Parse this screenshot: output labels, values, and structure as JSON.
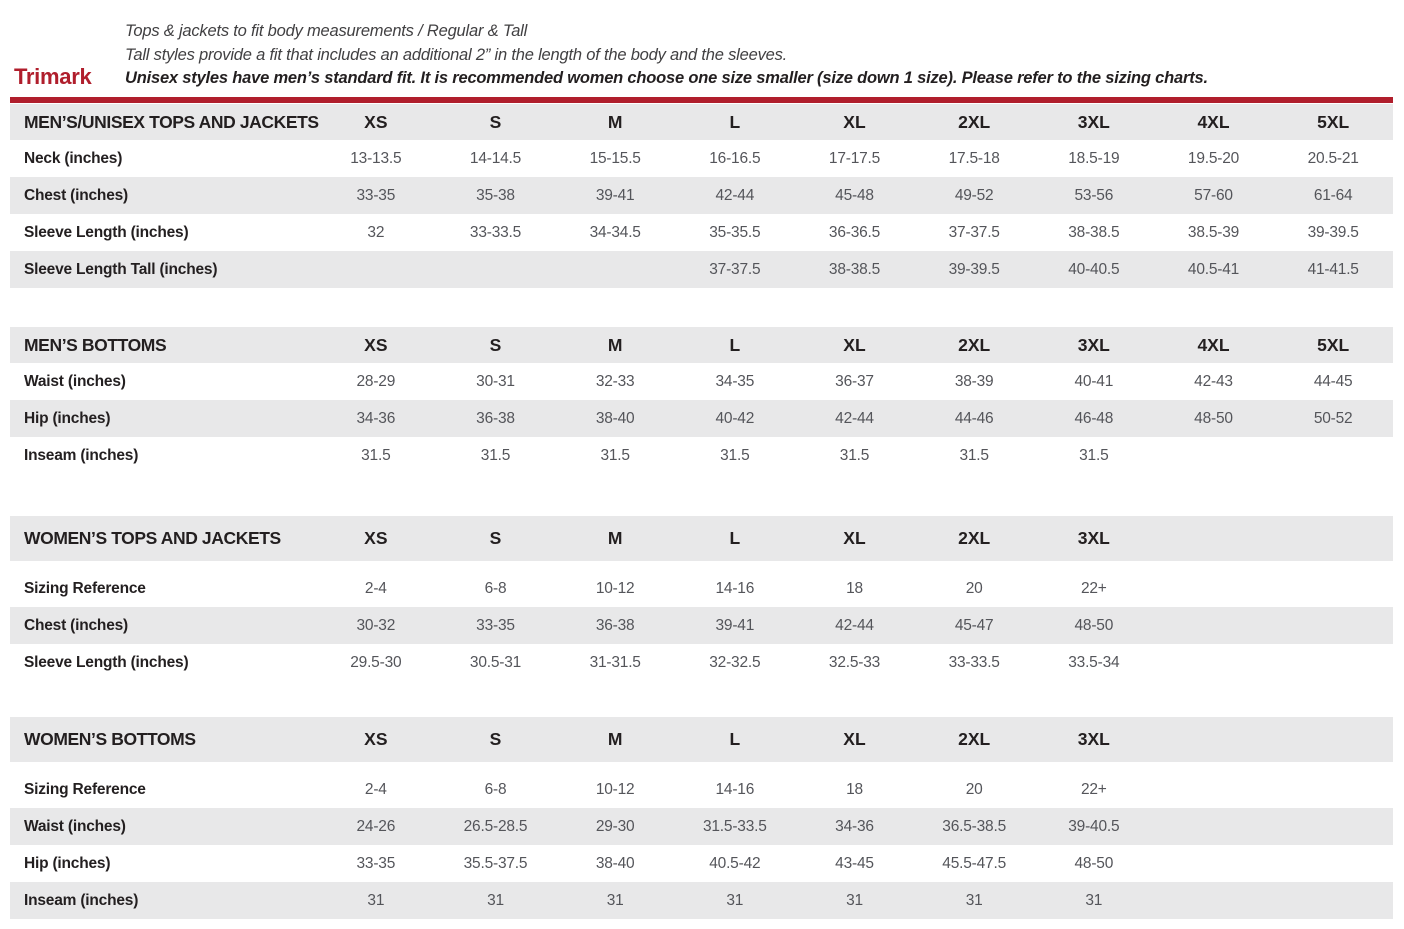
{
  "colors": {
    "accent_red": "#b01e2c",
    "row_shade_gray": "#e8e8e9",
    "label_text": "#231f20",
    "value_text": "#54555a"
  },
  "header": {
    "brand": "Trimark",
    "note_line_1": "Tops & jackets to fit body measurements / Regular & Tall",
    "note_line_2": "Tall styles provide a fit that includes an additional 2” in the length of the body and the sleeves.",
    "note_line_3": "Unisex styles have men’s standard fit. It is recommended women choose one size smaller (size down 1 size).  Please refer to the sizing charts."
  },
  "tables": [
    {
      "title": "MEN’S/UNISEX TOPS AND JACKETS",
      "sizes": [
        "XS",
        "S",
        "M",
        "L",
        "XL",
        "2XL",
        "3XL",
        "4XL",
        "5XL"
      ],
      "rows": [
        {
          "label": "Neck (inches)",
          "values": [
            "13-13.5",
            "14-14.5",
            "15-15.5",
            "16-16.5",
            "17-17.5",
            "17.5-18",
            "18.5-19",
            "19.5-20",
            "20.5-21"
          ]
        },
        {
          "label": "Chest (inches)",
          "values": [
            "33-35",
            "35-38",
            "39-41",
            "42-44",
            "45-48",
            "49-52",
            "53-56",
            "57-60",
            "61-64"
          ]
        },
        {
          "label": "Sleeve Length (inches)",
          "values": [
            "32",
            "33-33.5",
            "34-34.5",
            "35-35.5",
            "36-36.5",
            "37-37.5",
            "38-38.5",
            "38.5-39",
            "39-39.5"
          ]
        },
        {
          "label": "Sleeve Length Tall (inches)",
          "values": [
            "",
            "",
            "",
            "37-37.5",
            "38-38.5",
            "39-39.5",
            "40-40.5",
            "40.5-41",
            "41-41.5"
          ]
        }
      ]
    },
    {
      "title": "MEN’S BOTTOMS",
      "sizes": [
        "XS",
        "S",
        "M",
        "L",
        "XL",
        "2XL",
        "3XL",
        "4XL",
        "5XL"
      ],
      "rows": [
        {
          "label": "Waist (inches)",
          "values": [
            "28-29",
            "30-31",
            "32-33",
            "34-35",
            "36-37",
            "38-39",
            "40-41",
            "42-43",
            "44-45"
          ]
        },
        {
          "label": "Hip (inches)",
          "values": [
            "34-36",
            "36-38",
            "38-40",
            "40-42",
            "42-44",
            "44-46",
            "46-48",
            "48-50",
            "50-52"
          ]
        },
        {
          "label": "Inseam (inches)",
          "values": [
            "31.5",
            "31.5",
            "31.5",
            "31.5",
            "31.5",
            "31.5",
            "31.5",
            "",
            ""
          ]
        }
      ]
    },
    {
      "title": "WOMEN’S TOPS AND JACKETS",
      "sizes": [
        "XS",
        "S",
        "M",
        "L",
        "XL",
        "2XL",
        "3XL",
        "",
        ""
      ],
      "rows": [
        {
          "label": "Sizing Reference",
          "values": [
            "2-4",
            "6-8",
            "10-12",
            "14-16",
            "18",
            "20",
            "22+",
            "",
            ""
          ]
        },
        {
          "label": "Chest (inches)",
          "values": [
            "30-32",
            "33-35",
            "36-38",
            "39-41",
            "42-44",
            "45-47",
            "48-50",
            "",
            ""
          ]
        },
        {
          "label": "Sleeve Length (inches)",
          "values": [
            "29.5-30",
            "30.5-31",
            "31-31.5",
            "32-32.5",
            "32.5-33",
            "33-33.5",
            "33.5-34",
            "",
            ""
          ]
        }
      ]
    },
    {
      "title": "WOMEN’S BOTTOMS",
      "sizes": [
        "XS",
        "S",
        "M",
        "L",
        "XL",
        "2XL",
        "3XL",
        "",
        ""
      ],
      "rows": [
        {
          "label": "Sizing Reference",
          "values": [
            "2-4",
            "6-8",
            "10-12",
            "14-16",
            "18",
            "20",
            "22+",
            "",
            ""
          ]
        },
        {
          "label": "Waist (inches)",
          "values": [
            "24-26",
            "26.5-28.5",
            "29-30",
            "31.5-33.5",
            "34-36",
            "36.5-38.5",
            "39-40.5",
            "",
            ""
          ]
        },
        {
          "label": "Hip (inches)",
          "values": [
            "33-35",
            "35.5-37.5",
            "38-40",
            "40.5-42",
            "43-45",
            "45.5-47.5",
            "48-50",
            "",
            ""
          ]
        },
        {
          "label": "Inseam (inches)",
          "values": [
            "31",
            "31",
            "31",
            "31",
            "31",
            "31",
            "31",
            "",
            ""
          ]
        }
      ]
    }
  ]
}
